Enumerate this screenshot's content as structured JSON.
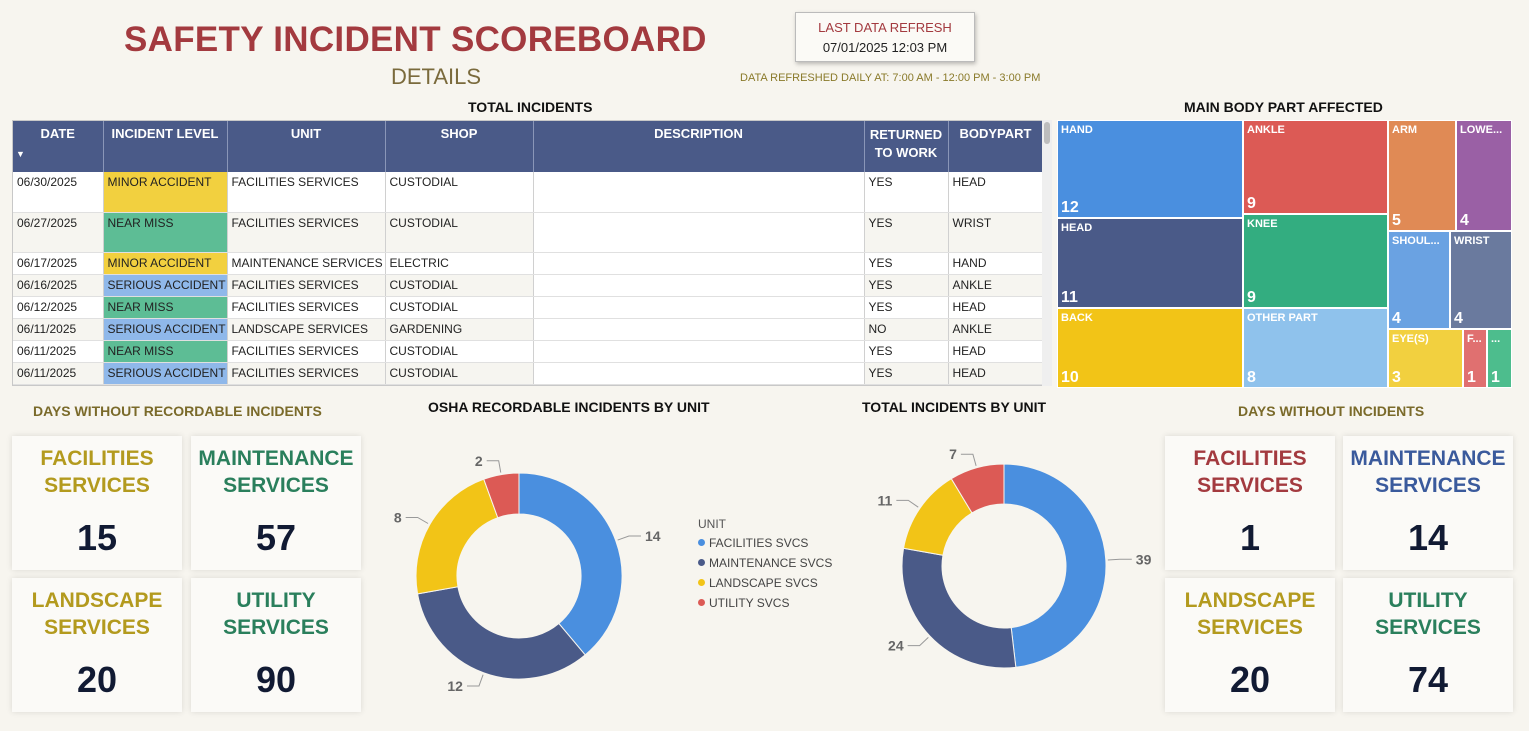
{
  "header": {
    "title": "SAFETY INCIDENT SCOREBOARD",
    "subtitle": "DETAILS",
    "refresh_label": "LAST DATA REFRESH",
    "refresh_value": "07/01/2025 12:03 PM",
    "refresh_note": "DATA REFRESHED DAILY AT: 7:00 AM - 12:00 PM - 3:00 PM"
  },
  "incidents_table": {
    "title": "TOTAL INCIDENTS",
    "sort_icon": "sort-down-icon",
    "columns": [
      "DATE",
      "INCIDENT LEVEL",
      "UNIT",
      "SHOP",
      "DESCRIPTION",
      "RETURNED TO WORK",
      "BODYPART"
    ],
    "rows": [
      {
        "date": "06/30/2025",
        "level": "MINOR ACCIDENT",
        "unit": "FACILITIES SERVICES",
        "shop": "CUSTODIAL",
        "description": "",
        "returned": "YES",
        "bodypart": "HEAD"
      },
      {
        "date": "06/27/2025",
        "level": "NEAR MISS",
        "unit": "FACILITIES SERVICES",
        "shop": "CUSTODIAL",
        "description": "",
        "returned": "YES",
        "bodypart": "WRIST"
      },
      {
        "date": "06/17/2025",
        "level": "MINOR ACCIDENT",
        "unit": "MAINTENANCE SERVICES",
        "shop": "ELECTRIC",
        "description": "",
        "returned": "YES",
        "bodypart": "HAND"
      },
      {
        "date": "06/16/2025",
        "level": "SERIOUS ACCIDENT",
        "unit": "FACILITIES SERVICES",
        "shop": "CUSTODIAL",
        "description": "",
        "returned": "YES",
        "bodypart": "ANKLE"
      },
      {
        "date": "06/12/2025",
        "level": "NEAR MISS",
        "unit": "FACILITIES SERVICES",
        "shop": "CUSTODIAL",
        "description": "",
        "returned": "YES",
        "bodypart": "HEAD"
      },
      {
        "date": "06/11/2025",
        "level": "SERIOUS ACCIDENT",
        "unit": "LANDSCAPE SERVICES",
        "shop": "GARDENING",
        "description": "",
        "returned": "NO",
        "bodypart": "ANKLE"
      },
      {
        "date": "06/11/2025",
        "level": "NEAR MISS",
        "unit": "FACILITIES SERVICES",
        "shop": "CUSTODIAL",
        "description": "",
        "returned": "YES",
        "bodypart": "HEAD"
      },
      {
        "date": "06/11/2025",
        "level": "SERIOUS ACCIDENT",
        "unit": "FACILITIES SERVICES",
        "shop": "CUSTODIAL",
        "description": "",
        "returned": "YES",
        "bodypart": "HEAD"
      }
    ],
    "level_colors": {
      "MINOR ACCIDENT": "#f2d03f",
      "NEAR MISS": "#5dbd95",
      "SERIOUS ACCIDENT": "#8fb8ea"
    }
  },
  "treemap": {
    "title": "MAIN BODY PART AFFECTED",
    "tiles": [
      {
        "label": "HAND",
        "value": "12",
        "color": "#4a8fdf"
      },
      {
        "label": "HEAD",
        "value": "11",
        "color": "#4a5a88"
      },
      {
        "label": "BACK",
        "value": "10",
        "color": "#f2c417"
      },
      {
        "label": "ANKLE",
        "value": "9",
        "color": "#dc5a55"
      },
      {
        "label": "KNEE",
        "value": "9",
        "color": "#33ad80"
      },
      {
        "label": "OTHER PART",
        "value": "8",
        "color": "#8fc2ec"
      },
      {
        "label": "ARM",
        "value": "5",
        "color": "#e08a55"
      },
      {
        "label": "LOWE...",
        "value": "4",
        "color": "#9a60a5"
      },
      {
        "label": "SHOUL...",
        "value": "4",
        "color": "#6aa2e2"
      },
      {
        "label": "WRIST",
        "value": "4",
        "color": "#6a7a9e"
      },
      {
        "label": "EYE(S)",
        "value": "3",
        "color": "#f2d03f"
      },
      {
        "label": "F...",
        "value": "1",
        "color": "#e07070"
      },
      {
        "label": "...",
        "value": "1",
        "color": "#4dbd8d"
      }
    ]
  },
  "days_recordable": {
    "title": "DAYS WITHOUT RECORDABLE INCIDENTS",
    "cards": [
      {
        "line1": "FACILITIES",
        "line2": "SERVICES",
        "value": "15"
      },
      {
        "line1": "MAINTENANCE",
        "line2": "SERVICES",
        "value": "57"
      },
      {
        "line1": "LANDSCAPE",
        "line2": "SERVICES",
        "value": "20"
      },
      {
        "line1": "UTILITY",
        "line2": "SERVICES",
        "value": "90"
      }
    ]
  },
  "days_incidents": {
    "title": "DAYS WITHOUT INCIDENTS",
    "cards": [
      {
        "line1": "FACILITIES",
        "line2": "SERVICES",
        "value": "1"
      },
      {
        "line1": "MAINTENANCE",
        "line2": "SERVICES",
        "value": "14"
      },
      {
        "line1": "LANDSCAPE",
        "line2": "SERVICES",
        "value": "20"
      },
      {
        "line1": "UTILITY",
        "line2": "SERVICES",
        "value": "74"
      }
    ]
  },
  "legend": {
    "title": "UNIT",
    "items": [
      {
        "label": "FACILITIES SVCS",
        "color": "#4a8fdf"
      },
      {
        "label": "MAINTENANCE SVCS",
        "color": "#4a5a88"
      },
      {
        "label": "LANDSCAPE SVCS",
        "color": "#f2c417"
      },
      {
        "label": "UTILITY SVCS",
        "color": "#dc5a55"
      }
    ]
  },
  "chart_data": [
    {
      "type": "pie",
      "title": "OSHA RECORDABLE INCIDENTS BY UNIT",
      "categories": [
        "FACILITIES SVCS",
        "MAINTENANCE SVCS",
        "LANDSCAPE SVCS",
        "UTILITY SVCS"
      ],
      "values": [
        14,
        12,
        8,
        2
      ],
      "colors": [
        "#4a8fdf",
        "#4a5a88",
        "#f2c417",
        "#dc5a55"
      ]
    },
    {
      "type": "pie",
      "title": "TOTAL INCIDENTS BY UNIT",
      "categories": [
        "FACILITIES SVCS",
        "MAINTENANCE SVCS",
        "LANDSCAPE SVCS",
        "UTILITY SVCS"
      ],
      "values": [
        39,
        24,
        11,
        7
      ],
      "colors": [
        "#4a8fdf",
        "#4a5a88",
        "#f2c417",
        "#dc5a55"
      ]
    }
  ]
}
